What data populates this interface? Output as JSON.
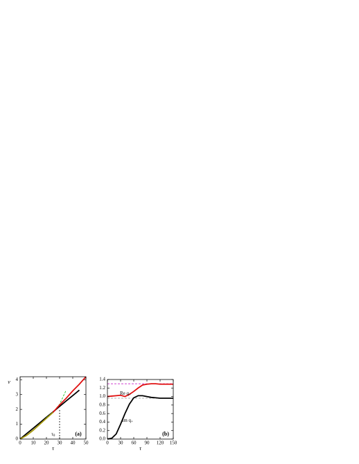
{
  "chart_data": [
    {
      "type": "line",
      "y_label": "ν",
      "x_label": "τ",
      "panel_label": "(a)",
      "annotations": [
        {
          "text": "τ",
          "sub": "0"
        }
      ],
      "x": [
        0,
        5,
        10,
        15,
        20,
        25,
        30,
        35,
        40,
        45,
        50
      ],
      "series": [
        {
          "color": "#000000",
          "dash": false,
          "values": [
            0,
            0.37,
            0.73,
            1.1,
            1.47,
            1.83,
            2.2,
            2.57,
            2.93,
            3.3,
            null
          ]
        },
        {
          "color": "#22c022",
          "dash": true,
          "values": [
            null,
            null,
            null,
            null,
            1.45,
            1.8,
            2.35,
            3.3,
            null,
            null,
            null
          ]
        },
        {
          "color": "#a89a10",
          "dash": false,
          "values": [
            0,
            0.25,
            0.6,
            1.0,
            1.4,
            1.8,
            null,
            null,
            null,
            null,
            null
          ]
        },
        {
          "color": "#e01010",
          "dash": false,
          "values": [
            null,
            null,
            null,
            null,
            null,
            1.8,
            2.3,
            2.75,
            3.25,
            3.7,
            4.2
          ]
        }
      ],
      "vline": {
        "x": 30,
        "top": 2
      },
      "xlim": [
        0,
        50
      ],
      "xticks": [
        0,
        10,
        20,
        30,
        40,
        50
      ],
      "ylim": [
        0,
        4.2
      ],
      "yticks": [
        0,
        1,
        2,
        3,
        4
      ]
    },
    {
      "type": "line",
      "x_label": "τ",
      "panel_label": "(b)",
      "annotations": [
        {
          "text": "Re q",
          "sub": "+"
        },
        {
          "text": "Im q",
          "sub": "+"
        }
      ],
      "x": [
        0,
        10,
        20,
        30,
        40,
        50,
        60,
        70,
        80,
        90,
        100,
        110,
        120,
        130,
        140,
        150
      ],
      "series": [
        {
          "color": "#e01010",
          "dash": false,
          "values": [
            1.0,
            1.01,
            1.02,
            1.03,
            1.0,
            1.05,
            1.12,
            1.2,
            1.27,
            1.29,
            1.3,
            1.3,
            1.29,
            1.29,
            1.29,
            1.29
          ]
        },
        {
          "color": "#000000",
          "dash": false,
          "values": [
            0,
            0.02,
            0.12,
            0.35,
            0.6,
            0.82,
            0.97,
            1.02,
            1.02,
            1.0,
            0.98,
            0.97,
            0.96,
            0.96,
            0.96,
            0.96
          ]
        }
      ],
      "hlines": [
        {
          "y": 1.3,
          "color": "#c000c0"
        },
        {
          "y": 0.96,
          "color": "#999999"
        }
      ],
      "xlim": [
        0,
        150
      ],
      "xticks": [
        0,
        30,
        60,
        90,
        120,
        150
      ],
      "ylim": [
        0,
        1.4
      ],
      "yticks": [
        {
          "value": 0,
          "label": "0.0"
        },
        {
          "value": 0.2,
          "label": "0.2"
        },
        {
          "value": 0.4,
          "label": "0.4"
        },
        {
          "value": 0.6,
          "label": "0.6"
        },
        {
          "value": 0.8,
          "label": "0.8"
        },
        {
          "value": 1.0,
          "label": "1.0"
        },
        {
          "value": 1.2,
          "label": "1.2"
        },
        {
          "value": 1.4,
          "label": "1.4"
        }
      ]
    }
  ]
}
